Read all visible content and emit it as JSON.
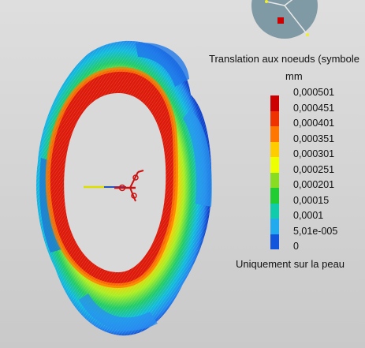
{
  "legend": {
    "title": "Translation aux noeuds (symbole",
    "unit": "mm",
    "ticks": [
      "0,000501",
      "0,000451",
      "0,000401",
      "0,000351",
      "0,000301",
      "0,000251",
      "0,000201",
      "0,00015",
      "0,0001",
      "5,01e-005",
      "0"
    ],
    "swatch_colors": [
      "#cc0000",
      "#ee3300",
      "#ff7700",
      "#ffcc00",
      "#eeff00",
      "#88dd22",
      "#22cc33",
      "#11ccaa",
      "#22aaee",
      "#1155dd"
    ],
    "footer": "Uniquement sur la peau"
  },
  "colors": {
    "background": "#d6d6d6",
    "compass": "#7f9aa4",
    "compass_marker": "#cc0000"
  }
}
